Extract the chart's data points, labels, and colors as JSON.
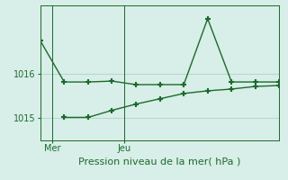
{
  "title": "Pression niveau de la mer( hPa )",
  "background_color": "#d8eee8",
  "grid_color": "#b0d8cc",
  "line_color": "#1a6b2a",
  "line1_x": [
    0,
    1,
    2,
    3,
    4,
    5,
    6,
    7,
    8,
    9,
    10
  ],
  "line1_y": [
    1016.75,
    1015.82,
    1015.82,
    1015.84,
    1015.76,
    1015.76,
    1015.76,
    1017.25,
    1015.82,
    1015.82,
    1015.82
  ],
  "line2_x": [
    1,
    2,
    3,
    4,
    5,
    6,
    7,
    8,
    9,
    10
  ],
  "line2_y": [
    1015.02,
    1015.02,
    1015.18,
    1015.32,
    1015.44,
    1015.56,
    1015.62,
    1015.66,
    1015.72,
    1015.74
  ],
  "yticks": [
    1015,
    1016
  ],
  "ylim": [
    1014.5,
    1017.55
  ],
  "xlim": [
    0,
    10
  ],
  "xtick_positions": [
    0.5,
    3.5
  ],
  "xtick_labels": [
    "Mer",
    "Jeu"
  ],
  "vline_x": [
    0.5,
    3.5
  ],
  "marker": "+",
  "markersize": 5,
  "markeredgewidth": 1.5,
  "linewidth": 1.0
}
